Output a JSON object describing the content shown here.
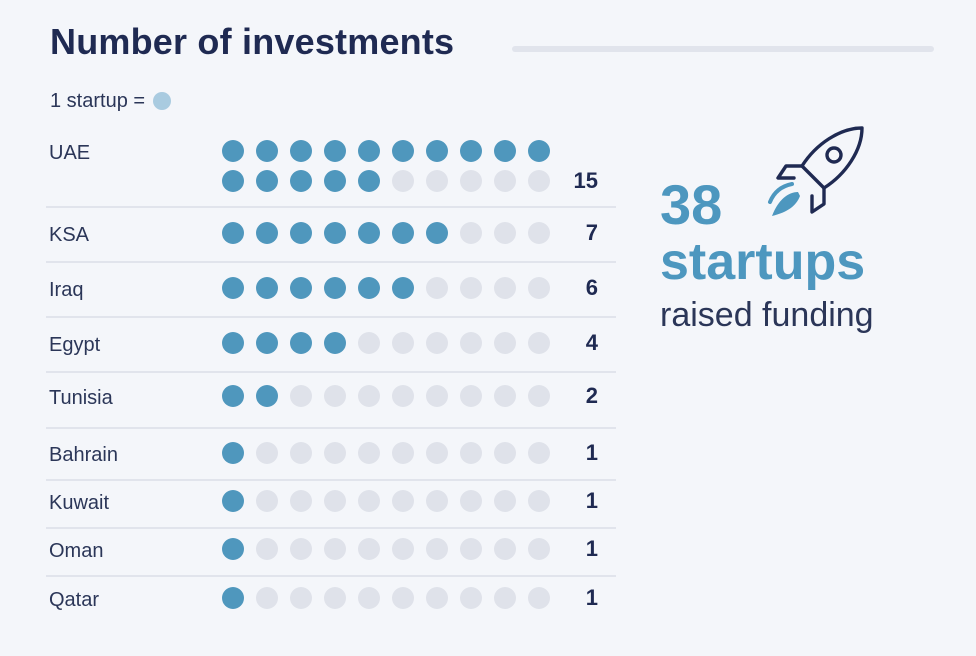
{
  "title": "Number of investments",
  "legend": {
    "label": "1 startup =",
    "dot_color": "#a9cbe0"
  },
  "colors": {
    "filled": "#4f97bd",
    "empty": "#dfe2ea",
    "accent": "#4d97bf"
  },
  "summary": {
    "number": "38",
    "unit": "startups",
    "caption": "raised funding",
    "icon": "rocket-icon"
  },
  "chart_data": {
    "type": "table",
    "title": "Number of investments",
    "unit_note": "1 startup =",
    "categories": [
      "UAE",
      "KSA",
      "Iraq",
      "Egypt",
      "Tunisia",
      "Bahrain",
      "Kuwait",
      "Oman",
      "Qatar"
    ],
    "values": [
      15,
      7,
      6,
      4,
      2,
      1,
      1,
      1,
      1
    ],
    "dots_per_line": 10
  }
}
